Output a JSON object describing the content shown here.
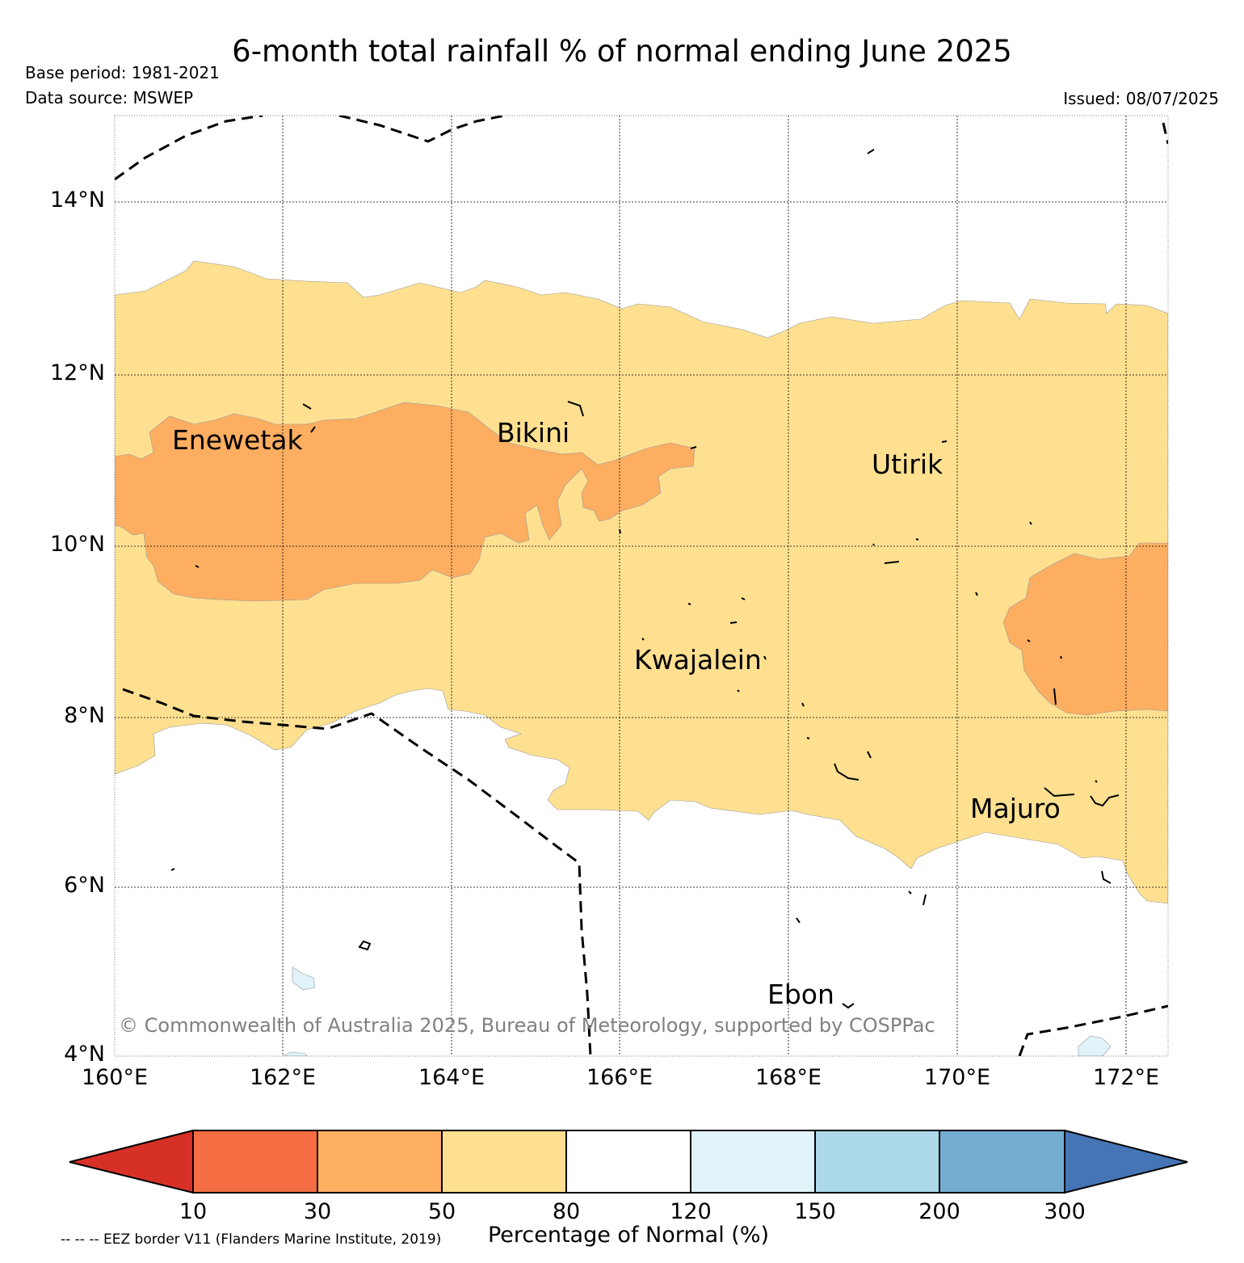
{
  "title": "6-month total rainfall % of normal ending June 2025",
  "base_period": "Base period: 1981-2021",
  "data_source": "Data source: MSWEP",
  "issued": "Issued: 08/07/2025",
  "map": {
    "lat_labels": [
      "14°N",
      "12°N",
      "10°N",
      "8°N",
      "6°N",
      "4°N"
    ],
    "lon_labels": [
      "160°E",
      "162°E",
      "164°E",
      "166°E",
      "168°E",
      "170°E",
      "172°E"
    ],
    "extent": {
      "lon_min": 160,
      "lon_max": 172.5,
      "lat_min": 4,
      "lat_max": 15
    },
    "places": [
      {
        "name": "Enewetak",
        "label": "Enewetak"
      },
      {
        "name": "Bikini",
        "label": "Bikini"
      },
      {
        "name": "Utirik",
        "label": "Utirik"
      },
      {
        "name": "Kwajalein",
        "label": "Kwajalein"
      },
      {
        "name": "Majuro",
        "label": "Majuro"
      },
      {
        "name": "Ebon",
        "label": "Ebon"
      }
    ],
    "copyright": "© Commonwealth of Australia 2025, Bureau of Meteorology, supported by COSPPac"
  },
  "colorbar": {
    "ticks": [
      "10",
      "30",
      "50",
      "80",
      "120",
      "150",
      "200",
      "300"
    ],
    "label": "Percentage of Normal (%)",
    "colors": {
      "below_10": "#d73027",
      "10_30": "#f46d43",
      "30_50": "#fdae61",
      "50_80": "#fee090",
      "80_120": "#ffffff",
      "120_150": "#e0f3f8",
      "150_200": "#abd9e9",
      "200_300": "#74add1",
      "above_300": "#4575b4"
    }
  },
  "eez_note": "-- -- -- EEZ border V11 (Flanders Marine Institute, 2019)"
}
